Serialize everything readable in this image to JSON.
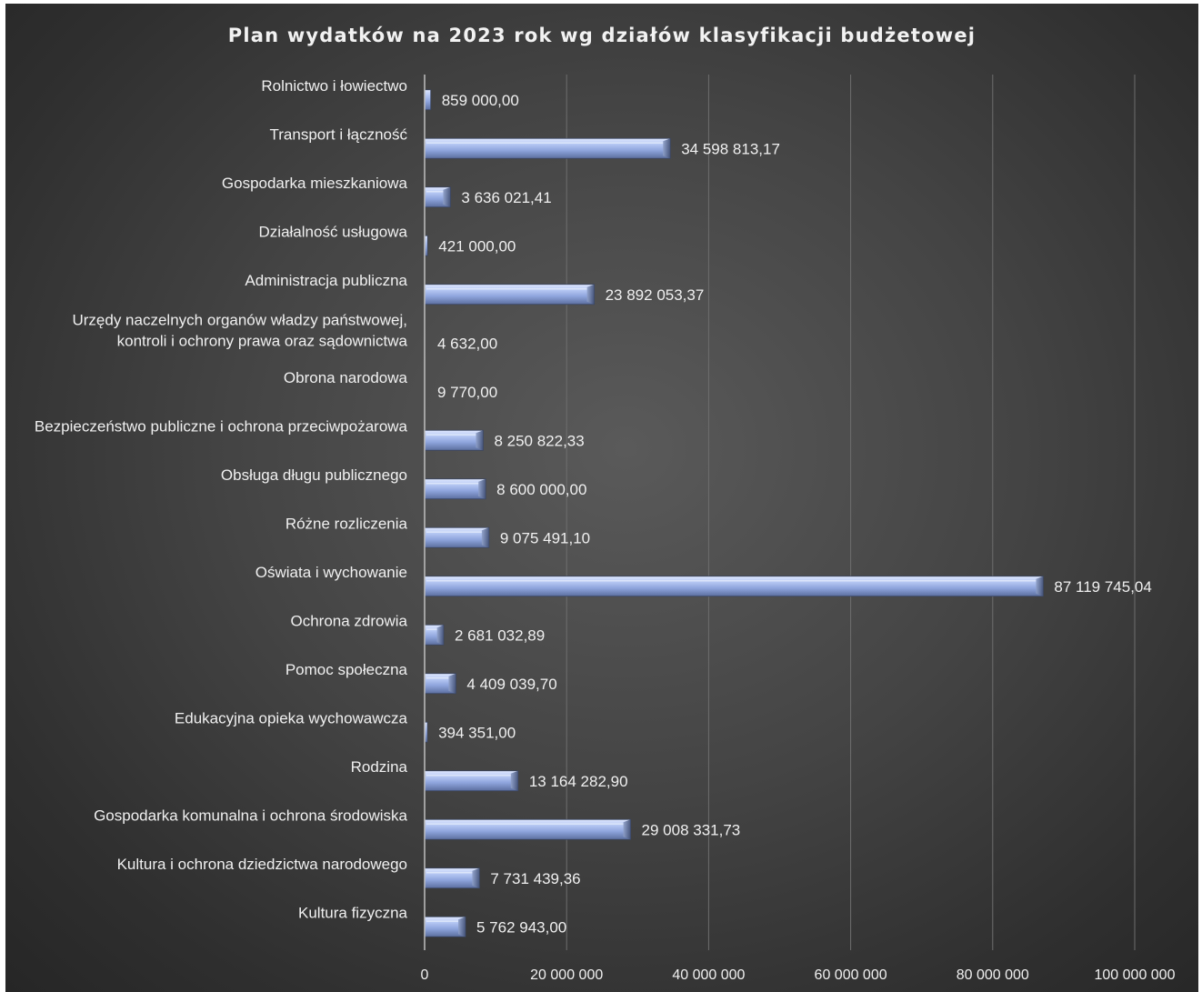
{
  "chart_data": {
    "type": "bar",
    "orientation": "horizontal",
    "title": "Plan wydatków na 2023 rok wg działów klasyfikacji budżetowej",
    "xlabel": "",
    "ylabel": "",
    "xlim": [
      0,
      100000000
    ],
    "xticks": [
      0,
      20000000,
      40000000,
      60000000,
      80000000,
      100000000
    ],
    "xtick_labels": [
      "0",
      "20 000 000",
      "40 000 000",
      "60 000 000",
      "80 000 000",
      "100 000 000"
    ],
    "grid": true,
    "legend": "none",
    "bar_color": "#9bb1e6",
    "categories": [
      [
        "Rolnictwo i łowiectwo"
      ],
      [
        "Transport i łączność"
      ],
      [
        "Gospodarka mieszkaniowa"
      ],
      [
        "Działalność usługowa"
      ],
      [
        "Administracja publiczna"
      ],
      [
        "Urzędy naczelnych organów władzy państwowej,",
        "kontroli i ochrony prawa oraz sądownictwa"
      ],
      [
        "Obrona narodowa"
      ],
      [
        "Bezpieczeństwo publiczne i ochrona przeciwpożarowa"
      ],
      [
        "Obsługa długu publicznego"
      ],
      [
        "Różne rozliczenia"
      ],
      [
        "Oświata i wychowanie"
      ],
      [
        "Ochrona zdrowia"
      ],
      [
        "Pomoc społeczna"
      ],
      [
        "Edukacyjna opieka wychowawcza"
      ],
      [
        "Rodzina"
      ],
      [
        "Gospodarka komunalna i ochrona środowiska"
      ],
      [
        "Kultura i ochrona dziedzictwa narodowego"
      ],
      [
        "Kultura fizyczna"
      ]
    ],
    "values": [
      859000.0,
      34598813.17,
      3636021.41,
      421000.0,
      23892053.37,
      4632.0,
      9770.0,
      8250822.33,
      8600000.0,
      9075491.1,
      87119745.04,
      2681032.89,
      4409039.7,
      394351.0,
      13164282.9,
      29008331.73,
      7731439.36,
      5762943.0
    ],
    "value_labels": [
      "859 000,00",
      "34 598 813,17",
      "3 636 021,41",
      "421 000,00",
      "23 892 053,37",
      "4 632,00",
      "9 770,00",
      "8 250 822,33",
      "8 600 000,00",
      "9 075 491,10",
      "87 119 745,04",
      "2 681 032,89",
      "4 409 039,70",
      "394 351,00",
      "13 164 282,90",
      "29 008 331,73",
      "7 731 439,36",
      "5 762 943,00"
    ]
  }
}
